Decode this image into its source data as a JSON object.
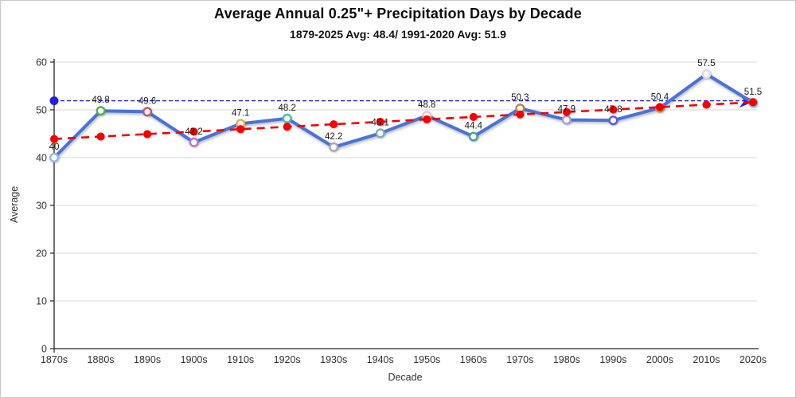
{
  "chart_data": {
    "type": "line",
    "title": "Average Annual 0.25\"+ Precipitation Days by Decade",
    "subtitle": "1879-2025 Avg: 48.4/ 1991-2020 Avg: 51.9",
    "xlabel": "Decade",
    "ylabel": "Average",
    "ylim": [
      0,
      60
    ],
    "ytick_step": 10,
    "grid": true,
    "legend_position": "none",
    "categories": [
      "1870s",
      "1880s",
      "1890s",
      "1900s",
      "1910s",
      "1920s",
      "1930s",
      "1940s",
      "1950s",
      "1960s",
      "1970s",
      "1980s",
      "1990s",
      "2000s",
      "2010s",
      "2020s"
    ],
    "series": [
      {
        "name": "precipitation-days-by-decade",
        "type": "line",
        "color": "#4a72d8",
        "values": [
          40,
          49.8,
          49.6,
          43.2,
          47.1,
          48.2,
          42.2,
          45.1,
          48.8,
          44.4,
          50.3,
          47.9,
          47.8,
          50.4,
          57.5,
          51.5
        ],
        "point_labels": [
          "40",
          "49.8",
          "49.6",
          "43.2",
          "47.1",
          "48.2",
          "42.2",
          "45.1",
          "48.8",
          "44.4",
          "50.3",
          "47.9",
          "47.8",
          "50.4",
          "57.5",
          "51.5"
        ],
        "marker_fill": "#fdfdfd",
        "marker_ring_colors": [
          "#96b9e4",
          "#55b04f",
          "#c05562",
          "#bb76d8",
          "#e9aa4b",
          "#4cbcb4",
          "#ababab",
          "#78adbc",
          "#eec3cb",
          "#4f9e94",
          "#b5834f",
          "#a89de0",
          "#5b58e0",
          "#c49a56",
          "#d9dcef",
          "#96b9e4"
        ]
      },
      {
        "name": "linear-trend",
        "type": "trendline",
        "color": "#f40000",
        "start_value": 43.9,
        "end_value": 51.6
      },
      {
        "name": "reference-1991-2020-average",
        "type": "reference-line",
        "color": "#2222dd",
        "value": 51.9
      }
    ],
    "colors": {
      "gridline": "#d9d9d9",
      "axis": "#262626",
      "tick_label": "#333333",
      "data_label": "#1a1a1a"
    }
  }
}
